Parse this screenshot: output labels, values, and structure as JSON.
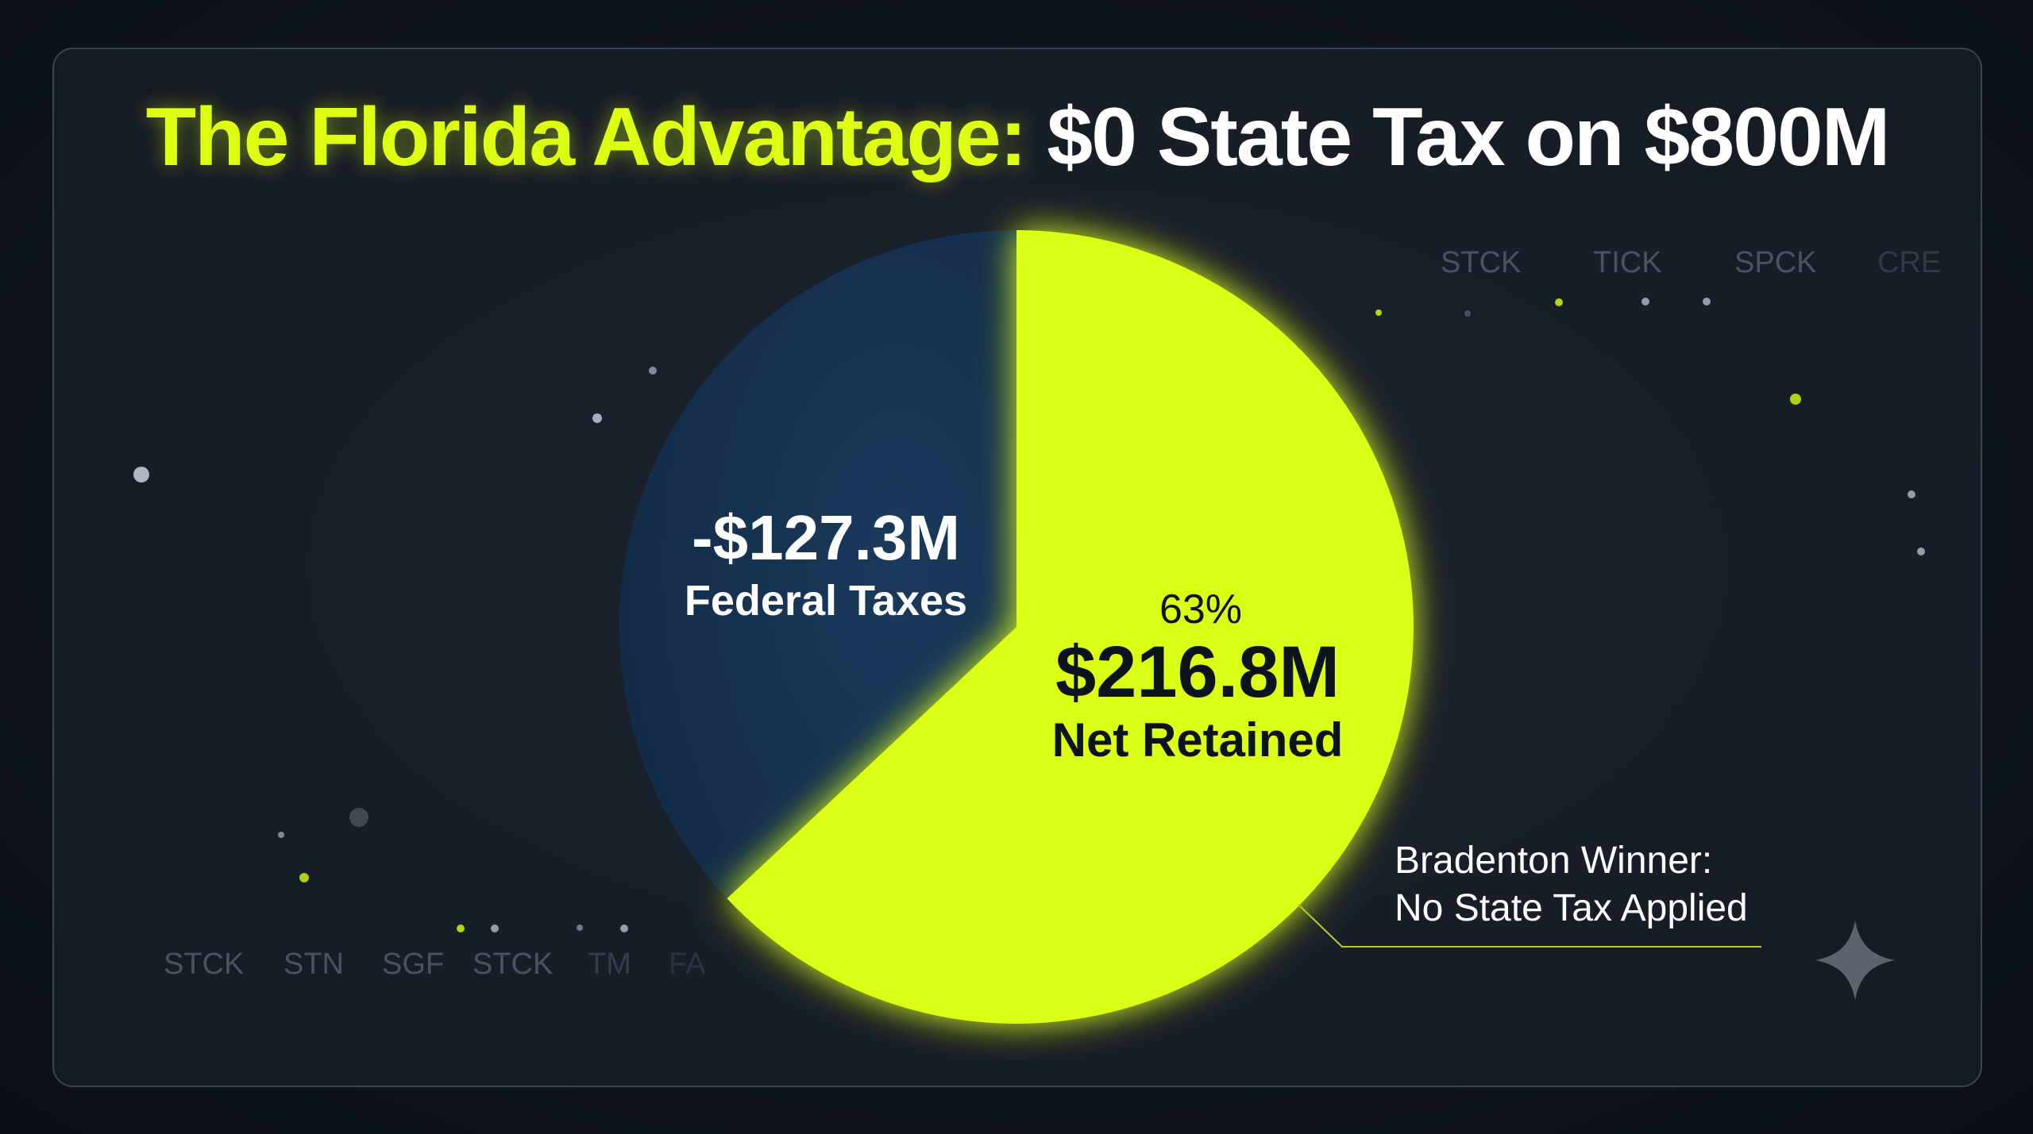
{
  "title": {
    "accent": "The Florida Advantage:",
    "rest": " $0 State Tax on $800M"
  },
  "tickers_top": [
    "STCK",
    "TICK",
    "SPCK",
    "CRE"
  ],
  "tickers_bottom": [
    "STCK",
    "STN",
    "SGF",
    "STCK",
    "TM",
    "FA"
  ],
  "chart_data": {
    "type": "pie",
    "title": "The Florida Advantage: $0 State Tax on $800M",
    "slices": [
      {
        "label": "Net Retained",
        "value_label": "$216.8M",
        "value": 216.8,
        "percent_label": "63%",
        "percent": 63,
        "color": "#dcff12"
      },
      {
        "label": "Federal Taxes",
        "value_label": "-$127.3M",
        "value": 127.3,
        "percent": 37,
        "color": "#163250"
      }
    ],
    "annotation": {
      "line1": "Bradenton Winner:",
      "line2": "No State Tax Applied"
    }
  },
  "colors": {
    "accent": "#dcff12",
    "federal": "#163250",
    "background": "#181e27"
  }
}
